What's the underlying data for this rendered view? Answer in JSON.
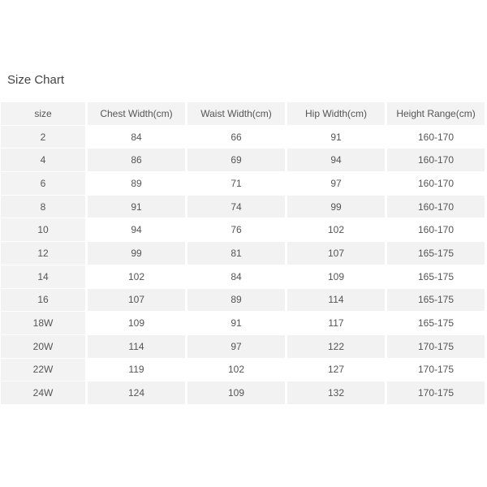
{
  "title": "Size Chart",
  "headers": [
    "size",
    "Chest Width(cm)",
    "Waist Width(cm)",
    "Hip Width(cm)",
    "Height Range(cm)"
  ],
  "rows": [
    [
      "2",
      "84",
      "66",
      "91",
      "160-170"
    ],
    [
      "4",
      "86",
      "69",
      "94",
      "160-170"
    ],
    [
      "6",
      "89",
      "71",
      "97",
      "160-170"
    ],
    [
      "8",
      "91",
      "74",
      "99",
      "160-170"
    ],
    [
      "10",
      "94",
      "76",
      "102",
      "160-170"
    ],
    [
      "12",
      "99",
      "81",
      "107",
      "165-175"
    ],
    [
      "14",
      "102",
      "84",
      "109",
      "165-175"
    ],
    [
      "16",
      "107",
      "89",
      "114",
      "165-175"
    ],
    [
      "18W",
      "109",
      "91",
      "117",
      "165-175"
    ],
    [
      "20W",
      "114",
      "97",
      "122",
      "170-175"
    ],
    [
      "22W",
      "119",
      "102",
      "127",
      "170-175"
    ],
    [
      "24W",
      "124",
      "109",
      "132",
      "170-175"
    ]
  ]
}
